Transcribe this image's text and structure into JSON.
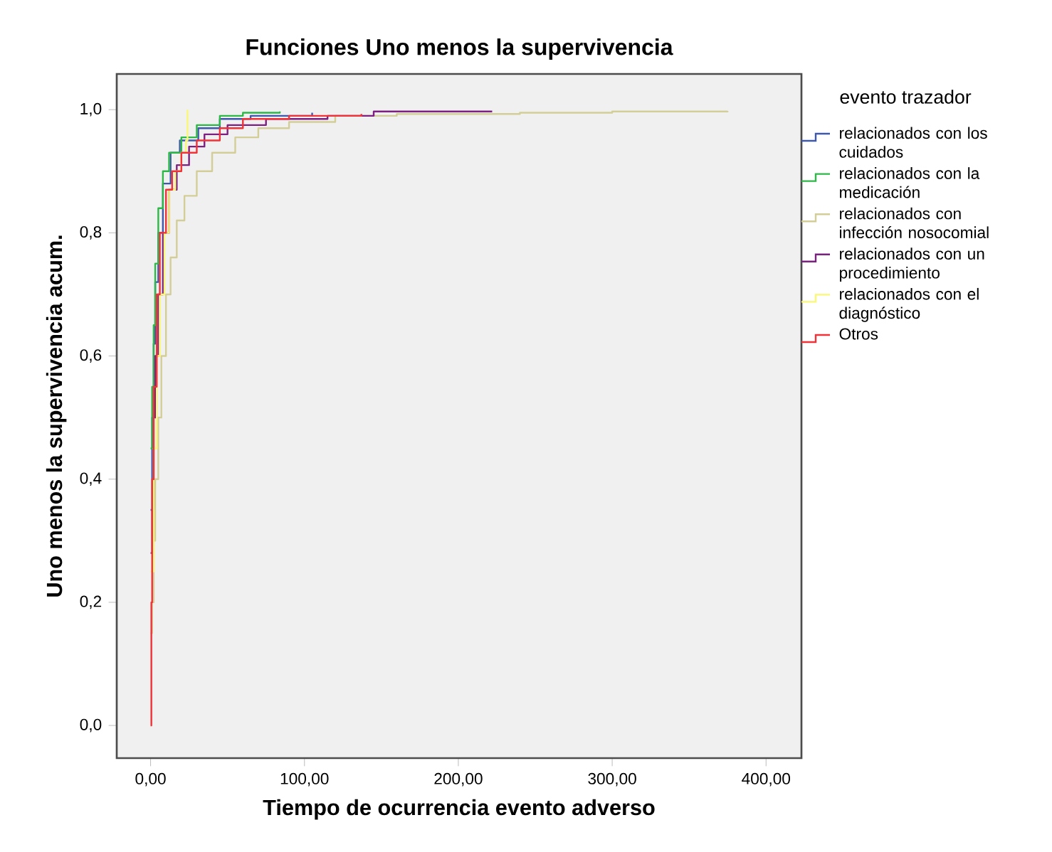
{
  "chart_data": {
    "type": "step",
    "title": "Funciones Uno menos la supervivencia",
    "xlabel": "Tiempo de ocurrencia evento adverso",
    "ylabel": "Uno menos la supervivencia acum.",
    "legend_title": "evento trazador",
    "legend": "right",
    "marker": "none",
    "grid": false,
    "xlim": [
      -22,
      423
    ],
    "ylim": [
      -0.053,
      1.058
    ],
    "xticks": [
      {
        "value": 0,
        "label": "0,00"
      },
      {
        "value": 100,
        "label": "100,00"
      },
      {
        "value": 200,
        "label": "200,00"
      },
      {
        "value": 300,
        "label": "300,00"
      },
      {
        "value": 400,
        "label": "400,00"
      }
    ],
    "yticks": [
      {
        "value": 0,
        "label": "0,0"
      },
      {
        "value": 0.2,
        "label": "0,2"
      },
      {
        "value": 0.4,
        "label": "0,4"
      },
      {
        "value": 0.6,
        "label": "0,6"
      },
      {
        "value": 0.8,
        "label": "0,8"
      },
      {
        "value": 1,
        "label": "1,0"
      }
    ],
    "series": [
      {
        "name": "relacionados con los cuidados",
        "color": "#3e58ac",
        "x": [
          0,
          1,
          2,
          3,
          5,
          8,
          13,
          19,
          31,
          45,
          65,
          105
        ],
        "values": [
          0.35,
          0.5,
          0.62,
          0.72,
          0.8,
          0.88,
          0.93,
          0.95,
          0.97,
          0.985,
          0.99,
          0.995
        ]
      },
      {
        "name": "relacionados con la medicación",
        "color": "#2eb848",
        "x": [
          0,
          1,
          2,
          3,
          5,
          8,
          12,
          20,
          30,
          45,
          60,
          84
        ],
        "values": [
          0.45,
          0.55,
          0.65,
          0.75,
          0.84,
          0.9,
          0.93,
          0.955,
          0.975,
          0.99,
          0.995,
          0.997
        ]
      },
      {
        "name": "relacionados con infección nosocomial",
        "color": "#d3ce97",
        "x": [
          0,
          1,
          2,
          3,
          5,
          7,
          10,
          13,
          17,
          22,
          30,
          40,
          55,
          70,
          90,
          120,
          160,
          240,
          300,
          375
        ],
        "values": [
          0.15,
          0.2,
          0.3,
          0.4,
          0.5,
          0.6,
          0.7,
          0.76,
          0.82,
          0.86,
          0.9,
          0.93,
          0.955,
          0.97,
          0.98,
          0.99,
          0.993,
          0.995,
          0.997,
          0.998
        ]
      },
      {
        "name": "relacionados con un procedimiento",
        "color": "#7c2181",
        "x": [
          0,
          1,
          2,
          3,
          5,
          8,
          12,
          17,
          25,
          35,
          50,
          75,
          115,
          145,
          222
        ],
        "values": [
          0.28,
          0.35,
          0.5,
          0.6,
          0.7,
          0.8,
          0.87,
          0.91,
          0.94,
          0.96,
          0.975,
          0.985,
          0.99,
          0.997,
          0.997
        ]
      },
      {
        "name": "relacionados con el diagnóstico",
        "color": "#fbf873",
        "x": [
          0,
          2,
          4,
          6,
          9,
          12,
          16,
          20,
          23,
          24
        ],
        "values": [
          0.25,
          0.45,
          0.6,
          0.7,
          0.8,
          0.87,
          0.9,
          0.93,
          0.95,
          1.0
        ]
      },
      {
        "name": "Otros",
        "color": "#ef3338",
        "x": [
          0,
          0.5,
          1,
          2,
          4,
          6,
          10,
          14,
          20,
          30,
          45,
          60,
          90,
          137
        ],
        "values": [
          0,
          0.2,
          0.4,
          0.55,
          0.7,
          0.8,
          0.87,
          0.9,
          0.93,
          0.95,
          0.97,
          0.985,
          0.99,
          0.993
        ]
      }
    ]
  }
}
